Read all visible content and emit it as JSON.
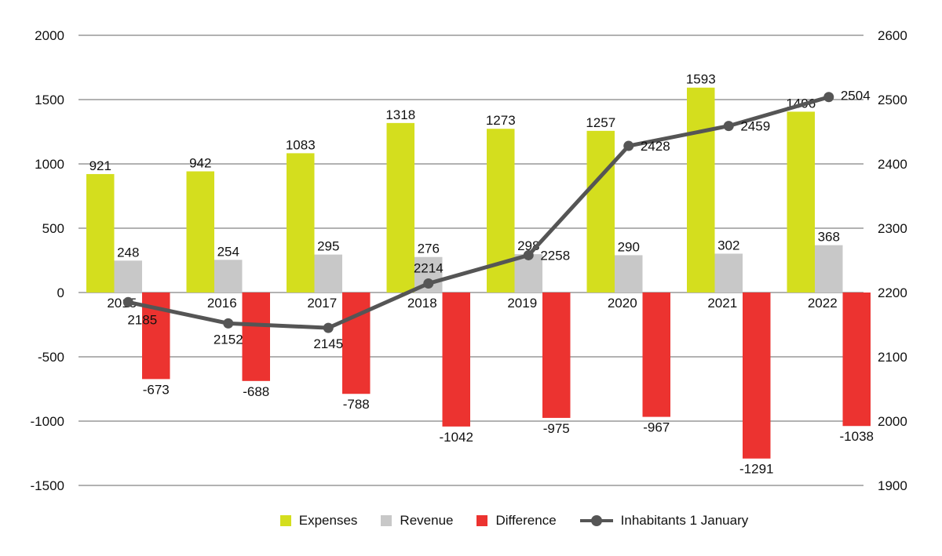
{
  "chart_data": {
    "type": "bar+line",
    "categories": [
      "2015",
      "2016",
      "2017",
      "2018",
      "2019",
      "2020",
      "2021",
      "2022"
    ],
    "series": [
      {
        "name": "Expenses",
        "type": "bar",
        "axis": "left",
        "color": "#d4de1e",
        "values": [
          921,
          942,
          1083,
          1318,
          1273,
          1257,
          1593,
          1406
        ]
      },
      {
        "name": "Revenue",
        "type": "bar",
        "axis": "left",
        "color": "#c8c8c8",
        "values": [
          248,
          254,
          295,
          276,
          298,
          290,
          302,
          368
        ]
      },
      {
        "name": "Difference",
        "type": "bar",
        "axis": "left",
        "color": "#ec3330",
        "values": [
          -673,
          -688,
          -788,
          -1042,
          -975,
          -967,
          -1291,
          -1038
        ]
      },
      {
        "name": "Inhabitants 1 January",
        "type": "line",
        "axis": "right",
        "color": "#555555",
        "values": [
          2185,
          2152,
          2145,
          2214,
          2258,
          2428,
          2459,
          2504
        ]
      }
    ],
    "y_left": {
      "lim": [
        -1500,
        2000
      ],
      "ticks": [
        "-1500",
        "-1000",
        "-500",
        "0",
        "500",
        "1000",
        "1500",
        "2000"
      ]
    },
    "y_right": {
      "lim": [
        1900,
        2600
      ],
      "ticks": [
        "1900",
        "2000",
        "2100",
        "2200",
        "2300",
        "2400",
        "2500",
        "2600"
      ]
    },
    "grid": true,
    "legend": "bottom"
  }
}
